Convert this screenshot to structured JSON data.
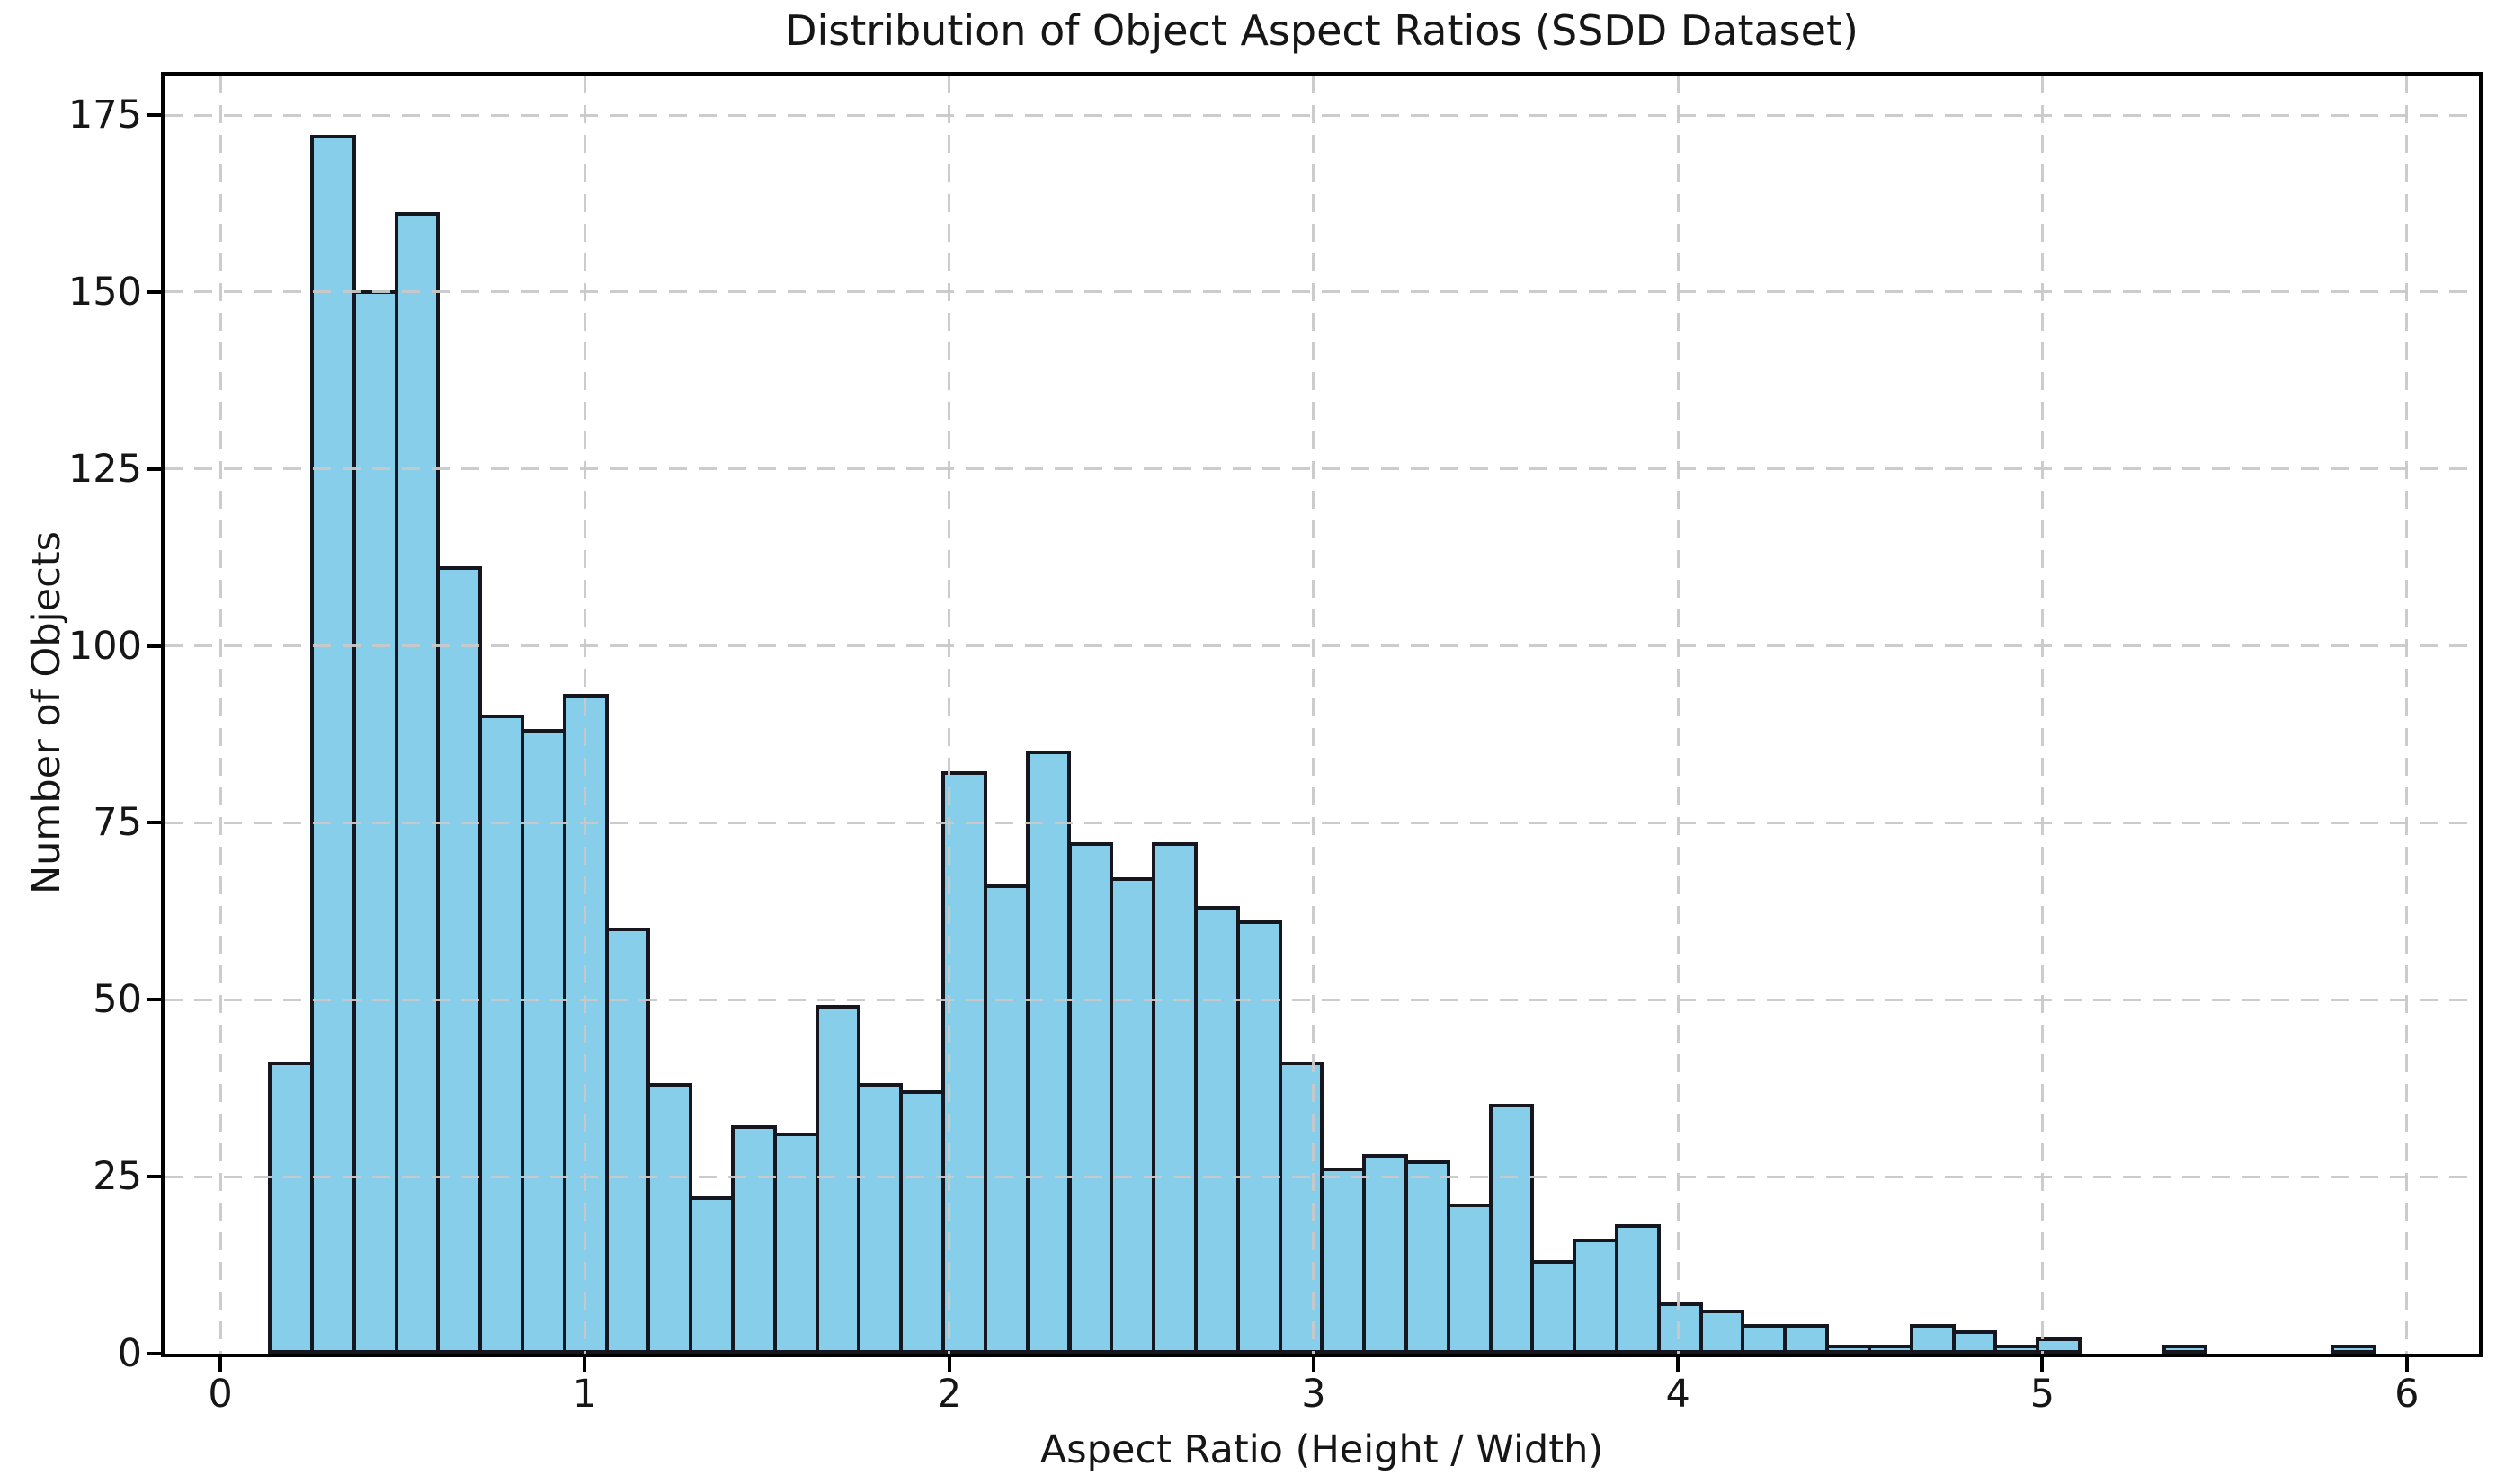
{
  "title": "Distribution of Object Aspect Ratios (SSDD Dataset)",
  "axes": {
    "xlabel": "Aspect Ratio (Height / Width)",
    "ylabel": "Number of Objects"
  },
  "chart_data": {
    "type": "bar",
    "subtype": "histogram",
    "title": "Distribution of Object Aspect Ratios (SSDD Dataset)",
    "xlabel": "Aspect Ratio (Height / Width)",
    "ylabel": "Number of Objects",
    "bin_start": 0.131,
    "bin_width": 0.1155,
    "values": [
      41,
      172,
      150,
      161,
      111,
      90,
      88,
      93,
      60,
      38,
      22,
      32,
      31,
      49,
      38,
      37,
      82,
      66,
      85,
      72,
      67,
      72,
      63,
      61,
      41,
      26,
      28,
      27,
      21,
      35,
      13,
      16,
      18,
      7,
      6,
      4,
      4,
      1,
      1,
      4,
      3,
      1,
      2,
      0,
      0,
      1,
      0,
      0,
      0,
      1
    ],
    "xticks": [
      0,
      1,
      2,
      3,
      4,
      5,
      6
    ],
    "yticks": [
      0,
      25,
      50,
      75,
      100,
      125,
      150,
      175
    ],
    "xlim": [
      -0.153,
      6.198
    ],
    "ylim": [
      0,
      180.6
    ],
    "grid": true,
    "grid_style": "dashed",
    "grid_over_bars": true,
    "legend": false,
    "bar_color": "#87CEEB",
    "bar_edge_color": "#16161f",
    "spine_color": "#000000",
    "grid_color": "#c9c9c9"
  }
}
